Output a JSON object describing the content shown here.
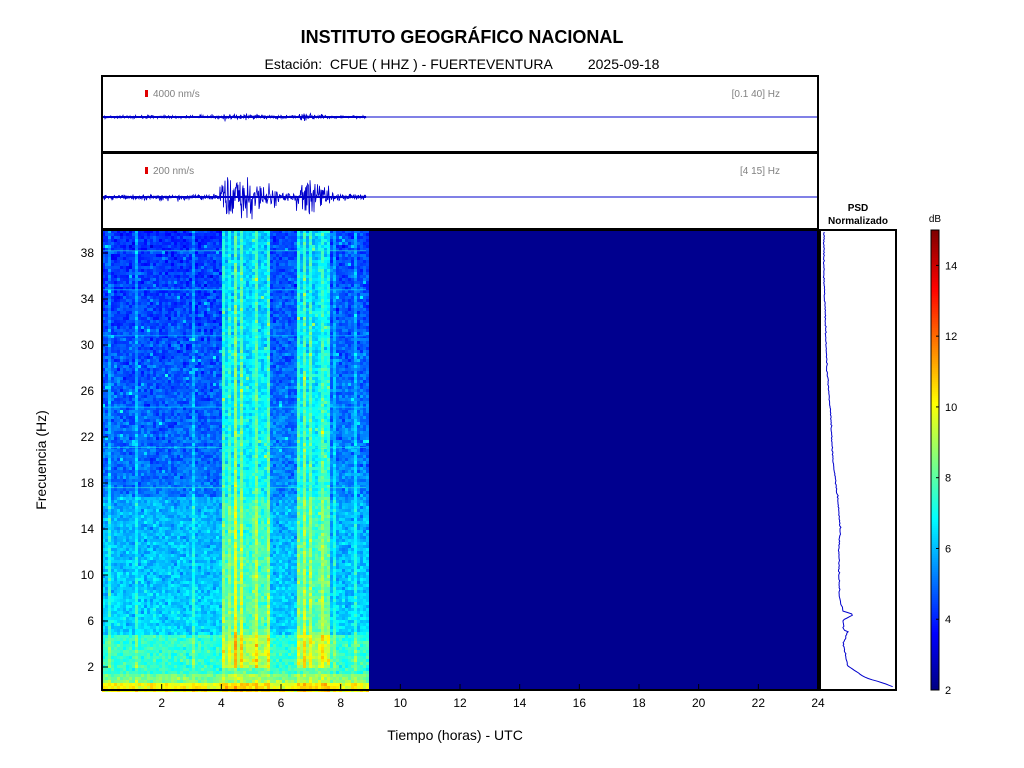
{
  "header": {
    "title": "INSTITUTO GEOGRÁFICO NACIONAL",
    "station_prefix": "Estación:",
    "station": "CFUE ( HHZ ) - FUERTEVENTURA",
    "date": "2025-09-18"
  },
  "chart_data": [
    {
      "type": "line",
      "name": "seismogram-broadband",
      "scale_label": "4000 nm/s",
      "band_label": "[0.1 40] Hz",
      "x_range": [
        0,
        24
      ],
      "data_end_hour": 8.85,
      "amplitude_profile": [
        [
          0,
          0.06
        ],
        [
          3.9,
          0.06
        ],
        [
          4.0,
          0.12
        ],
        [
          5.2,
          0.1
        ],
        [
          6.5,
          0.06
        ],
        [
          6.7,
          0.14
        ],
        [
          7.3,
          0.12
        ],
        [
          7.6,
          0.05
        ],
        [
          8.85,
          0.05
        ]
      ],
      "color": "#0000cc"
    },
    {
      "type": "line",
      "name": "seismogram-filtered",
      "scale_label": "200 nm/s",
      "band_label": "[4 15] Hz",
      "x_range": [
        0,
        24
      ],
      "data_end_hour": 8.85,
      "amplitude_profile": [
        [
          0,
          0.1
        ],
        [
          3.9,
          0.12
        ],
        [
          4.0,
          0.75
        ],
        [
          4.5,
          0.95
        ],
        [
          5.2,
          0.6
        ],
        [
          5.6,
          0.35
        ],
        [
          6.4,
          0.25
        ],
        [
          6.6,
          0.55
        ],
        [
          7.0,
          0.9
        ],
        [
          7.4,
          0.45
        ],
        [
          7.7,
          0.15
        ],
        [
          8.85,
          0.12
        ]
      ],
      "color": "#0000cc"
    },
    {
      "type": "heatmap",
      "name": "spectrogram",
      "xlabel": "Tiempo (horas) - UTC",
      "ylabel": "Frecuencia  (Hz)",
      "x_range": [
        0,
        24
      ],
      "y_range": [
        0,
        40
      ],
      "x_ticks": [
        2,
        4,
        6,
        8,
        10,
        12,
        14,
        16,
        18,
        20,
        22,
        24
      ],
      "y_ticks": [
        2,
        6,
        10,
        14,
        18,
        22,
        26,
        30,
        34,
        38
      ],
      "data_end_hour": 8.85,
      "activity_windows_hours": [
        [
          4.0,
          5.6
        ],
        [
          6.5,
          7.6
        ]
      ],
      "empty_color": "#00008f"
    },
    {
      "type": "line",
      "name": "psd-normalizado",
      "title": "PSD\nNormalizado",
      "y_range": [
        0,
        40
      ],
      "profile": [
        [
          0.2,
          0.97
        ],
        [
          0.5,
          0.85
        ],
        [
          1,
          0.6
        ],
        [
          2,
          0.36
        ],
        [
          4,
          0.3
        ],
        [
          5,
          0.36
        ],
        [
          5.2,
          0.3
        ],
        [
          6,
          0.3
        ],
        [
          6.5,
          0.44
        ],
        [
          6.8,
          0.3
        ],
        [
          8,
          0.25
        ],
        [
          12,
          0.24
        ],
        [
          14,
          0.26
        ],
        [
          17,
          0.22
        ],
        [
          20,
          0.16
        ],
        [
          24,
          0.13
        ],
        [
          28,
          0.08
        ],
        [
          32,
          0.06
        ],
        [
          36,
          0.04
        ],
        [
          40,
          0.04
        ]
      ]
    },
    {
      "type": "heatmap",
      "name": "colorbar",
      "label": "dB",
      "range": [
        2,
        15
      ],
      "ticks": [
        2,
        4,
        6,
        8,
        10,
        12,
        14
      ],
      "colormap": "jet"
    }
  ]
}
